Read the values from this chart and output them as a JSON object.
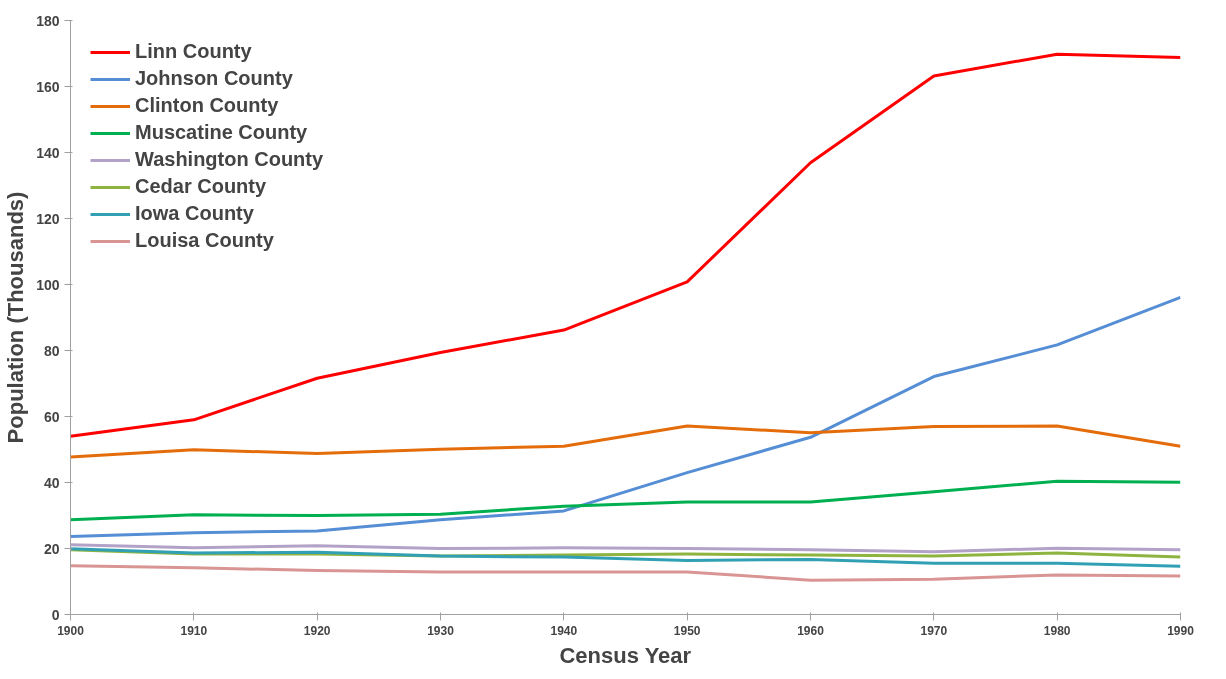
{
  "chart_data": {
    "type": "line",
    "xlabel": "Census Year",
    "ylabel": "Population (Thousands)",
    "x": [
      1900,
      1910,
      1920,
      1930,
      1940,
      1950,
      1960,
      1970,
      1980,
      1990
    ],
    "series": [
      {
        "name": "Linn County",
        "color": "#ff0000",
        "values": [
          54,
          59,
          71.6,
          79.4,
          86.2,
          100.8,
          136.9,
          163.2,
          169.8,
          168.8
        ]
      },
      {
        "name": "Johnson County",
        "color": "#558ed5",
        "values": [
          23.6,
          24.8,
          25.3,
          28.7,
          31.4,
          43.0,
          53.7,
          72.1,
          81.7,
          96.1
        ]
      },
      {
        "name": "Clinton County",
        "color": "#e46c0a",
        "values": [
          47.7,
          49.9,
          48.8,
          50.1,
          51.0,
          57.1,
          55.1,
          57.0,
          57.1,
          51.0
        ]
      },
      {
        "name": "Muscatine County",
        "color": "#00b050",
        "values": [
          28.7,
          30.2,
          30.0,
          30.4,
          32.8,
          34.1,
          34.1,
          37.2,
          40.4,
          40.1
        ]
      },
      {
        "name": "Washington County",
        "color": "#b3a2c7",
        "values": [
          21.1,
          20.2,
          20.8,
          20.0,
          20.2,
          20.0,
          19.6,
          19.0,
          20.1,
          19.6
        ]
      },
      {
        "name": "Cedar County",
        "color": "#8eb43f",
        "values": [
          19.6,
          18.3,
          18.3,
          17.7,
          18.0,
          18.3,
          18.0,
          17.7,
          18.6,
          17.4
        ]
      },
      {
        "name": "Iowa County",
        "color": "#31a0b5",
        "values": [
          19.9,
          18.6,
          18.9,
          17.7,
          17.4,
          16.4,
          16.7,
          15.5,
          15.5,
          14.6
        ]
      },
      {
        "name": "Louisa County",
        "color": "#d99594",
        "values": [
          14.8,
          14.2,
          13.3,
          12.9,
          12.9,
          12.9,
          10.4,
          10.7,
          12.0,
          11.7
        ]
      }
    ],
    "xlim": [
      1900,
      1990
    ],
    "xticks": [
      1900,
      1910,
      1920,
      1930,
      1940,
      1950,
      1960,
      1970,
      1980,
      1990
    ],
    "ylim": [
      0,
      180
    ],
    "yticks": [
      0,
      20,
      40,
      60,
      80,
      100,
      120,
      140,
      160,
      180
    ],
    "grid": false,
    "legend": "top left",
    "marker": "none",
    "line_style": "solid"
  }
}
